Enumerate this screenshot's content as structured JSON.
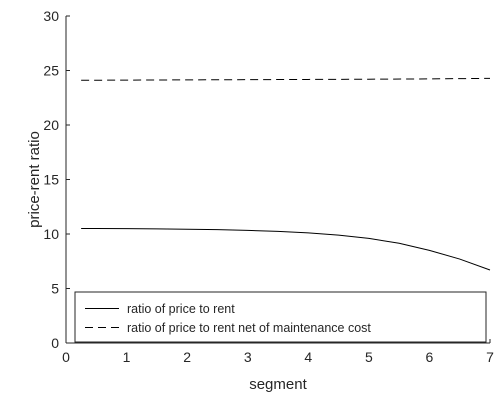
{
  "chart_data": {
    "type": "line",
    "xlabel": "segment",
    "ylabel": "price-rent ratio",
    "xlim": [
      0,
      7
    ],
    "ylim": [
      0,
      30
    ],
    "xticks": [
      0,
      1,
      2,
      3,
      4,
      5,
      6,
      7
    ],
    "yticks": [
      0,
      5,
      10,
      15,
      20,
      25,
      30
    ],
    "grid": false,
    "box": false,
    "legend_position": "bottom",
    "series": [
      {
        "name": "ratio of price to rent",
        "line_style": "solid",
        "color": "#000000",
        "x": [
          0.25,
          0.5,
          1.0,
          1.5,
          2.0,
          2.5,
          3.0,
          3.5,
          4.0,
          4.5,
          5.0,
          5.5,
          6.0,
          6.5,
          7.0
        ],
        "y": [
          10.5,
          10.5,
          10.49,
          10.47,
          10.44,
          10.4,
          10.33,
          10.24,
          10.1,
          9.9,
          9.6,
          9.15,
          8.5,
          7.7,
          6.7
        ]
      },
      {
        "name": "ratio of price to rent net of maintenance cost",
        "line_style": "dashed",
        "color": "#000000",
        "x": [
          0.25,
          1.0,
          2.0,
          3.0,
          4.0,
          5.0,
          6.0,
          7.0
        ],
        "y": [
          24.1,
          24.12,
          24.14,
          24.16,
          24.18,
          24.2,
          24.23,
          24.28
        ]
      }
    ]
  }
}
